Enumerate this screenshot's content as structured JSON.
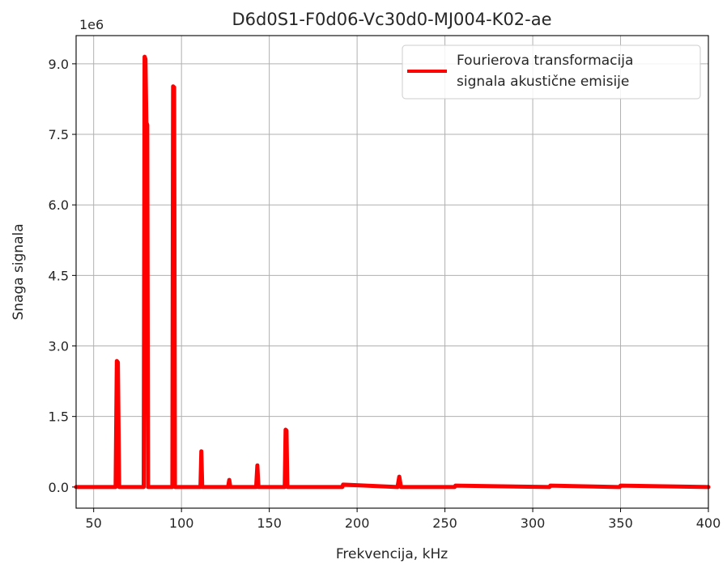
{
  "chart_data": {
    "type": "line",
    "title": "D6d0S1-F0d06-Vc30d0-MJ004-K02-ae",
    "xlabel": "Frekvencija, kHz",
    "ylabel": "Snaga signala",
    "y_offset_label": "1e6",
    "xlim": [
      40,
      400
    ],
    "ylim": [
      -0.45,
      9.6
    ],
    "y_scale_factor": 1000000,
    "grid": true,
    "legend_position": "top-right",
    "x_ticks": [
      50,
      100,
      150,
      200,
      250,
      300,
      350,
      400
    ],
    "x_tick_labels": [
      "50",
      "100",
      "150",
      "200",
      "250",
      "300",
      "350",
      "400"
    ],
    "y_ticks": [
      0.0,
      1.5,
      3.0,
      4.5,
      6.0,
      7.5,
      9.0
    ],
    "y_tick_labels": [
      "0.0",
      "1.5",
      "3.0",
      "4.5",
      "6.0",
      "7.5",
      "9.0"
    ],
    "series": [
      {
        "name": "Fourierova transformacija\nsignala akustične emisije",
        "legend_lines": [
          "Fourierova transformacija",
          "signala akustične emisije"
        ],
        "color": "#ff0000",
        "x": [
          40,
          62.5,
          63.2,
          63.8,
          64.5,
          78.5,
          79.0,
          79.5,
          80.0,
          80.5,
          81.0,
          94.8,
          95.2,
          95.8,
          96.3,
          110.8,
          111.3,
          111.8,
          126.5,
          127.2,
          127.8,
          142.5,
          143.2,
          143.8,
          158.8,
          159.3,
          159.8,
          160.3,
          191.5,
          192.0,
          223.0,
          224.0,
          225.0,
          255.5,
          256.0,
          309.5,
          310.0,
          349.5,
          350.0,
          400
        ],
        "y": [
          0.0,
          0.0,
          2.68,
          2.65,
          0.0,
          0.0,
          9.15,
          9.1,
          7.75,
          7.7,
          0.0,
          0.0,
          8.52,
          8.5,
          0.0,
          0.0,
          0.76,
          0.0,
          0.0,
          0.15,
          0.0,
          0.0,
          0.46,
          0.0,
          0.0,
          1.22,
          1.2,
          0.0,
          0.0,
          0.05,
          0.0,
          0.22,
          0.0,
          0.0,
          0.03,
          0.0,
          0.03,
          0.0,
          0.03,
          0.0
        ]
      }
    ]
  }
}
